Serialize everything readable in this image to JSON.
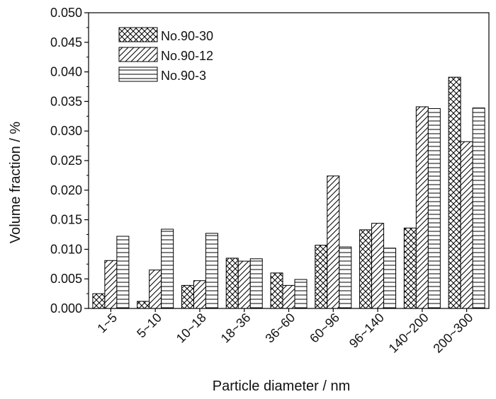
{
  "chart_data": {
    "type": "bar",
    "categories": [
      "1~5",
      "5~10",
      "10~18",
      "18~36",
      "36~60",
      "60~96",
      "96~140",
      "140~200",
      "200~300"
    ],
    "series": [
      {
        "name": "No.90-30",
        "pattern": "crosshatch",
        "values": [
          0.0025,
          0.0012,
          0.0039,
          0.0085,
          0.006,
          0.0107,
          0.0133,
          0.0136,
          0.0391
        ]
      },
      {
        "name": "No.90-12",
        "pattern": "diagonal",
        "values": [
          0.0081,
          0.0065,
          0.0047,
          0.008,
          0.0039,
          0.0224,
          0.0144,
          0.0341,
          0.0282
        ]
      },
      {
        "name": "No.90-3",
        "pattern": "horizontal",
        "values": [
          0.0122,
          0.0134,
          0.0127,
          0.0084,
          0.0049,
          0.0104,
          0.0102,
          0.0338,
          0.0339
        ]
      }
    ],
    "xlabel": "Particle diameter / nm",
    "ylabel": "Volume fraction / %",
    "ylim": [
      0,
      0.05
    ],
    "yticks": [
      "0.000",
      "0.005",
      "0.010",
      "0.015",
      "0.020",
      "0.025",
      "0.030",
      "0.035",
      "0.040",
      "0.045",
      "0.050"
    ],
    "grid": false,
    "legend_position": "top-left"
  }
}
